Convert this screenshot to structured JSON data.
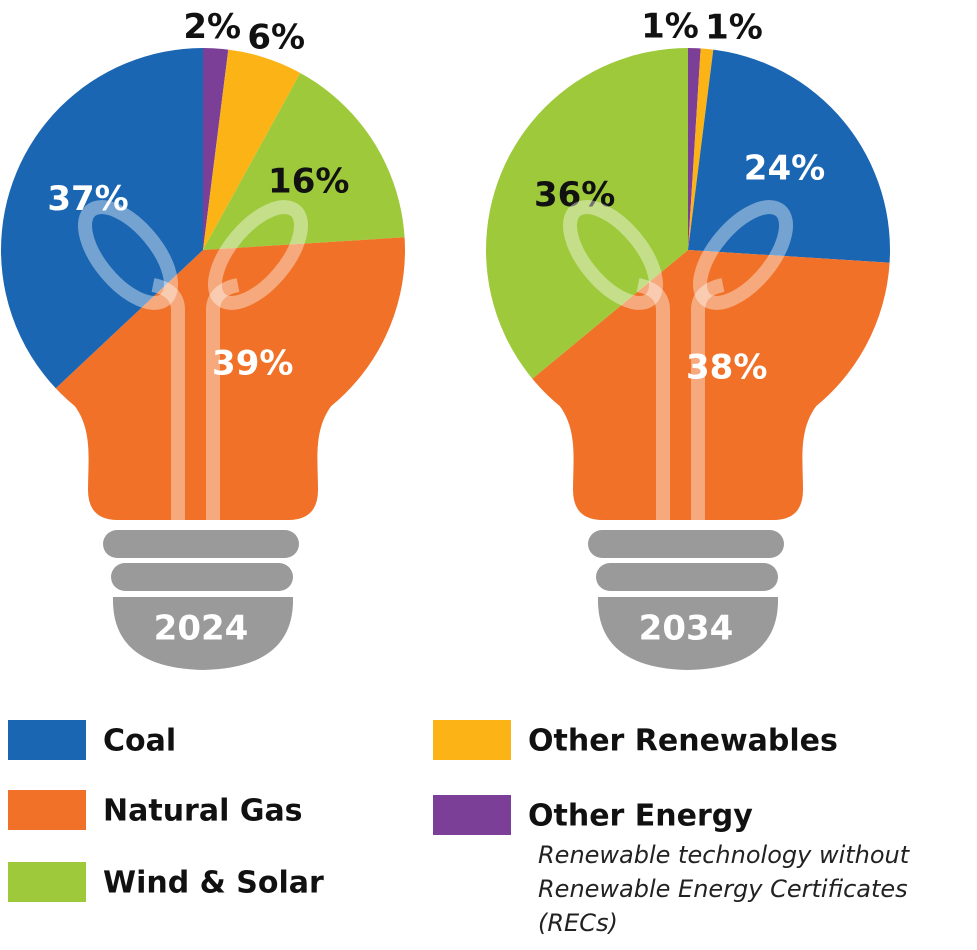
{
  "chart_data": [
    {
      "type": "pie",
      "title": "2024",
      "categories": [
        "Other Energy",
        "Other Renewables",
        "Wind & Solar",
        "Natural Gas",
        "Coal"
      ],
      "values": [
        2,
        6,
        16,
        39,
        37
      ],
      "value_labels": [
        "2%",
        "6%",
        "16%",
        "39%",
        "37%"
      ],
      "colors": [
        "#7b3f98",
        "#fbb316",
        "#9dc93b",
        "#f07127",
        "#1a66b3"
      ]
    },
    {
      "type": "pie",
      "title": "2034",
      "categories": [
        "Other Energy",
        "Other Renewables",
        "Coal",
        "Natural Gas",
        "Wind & Solar"
      ],
      "values": [
        1,
        1,
        24,
        38,
        36
      ],
      "value_labels": [
        "1%",
        "1%",
        "24%",
        "38%",
        "36%"
      ],
      "colors": [
        "#7b3f98",
        "#fbb316",
        "#1a66b3",
        "#f07127",
        "#9dc93b"
      ]
    }
  ],
  "legend_note": "Renewable technology without Renewable Energy Certificates (RECs)"
}
